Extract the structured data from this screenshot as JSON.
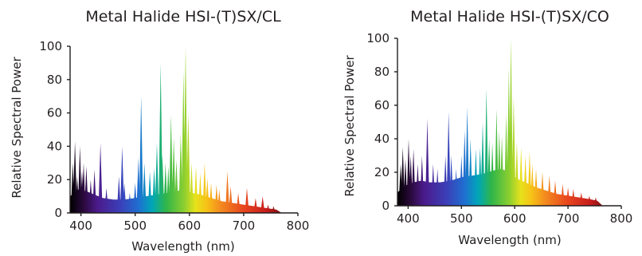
{
  "chart_data": [
    {
      "type": "area",
      "title": "Metal Halide HSI-(T)SX/CL",
      "xlabel": "Wavelength (nm)",
      "ylabel": "Relative Spectral Power",
      "xlim": [
        380,
        800
      ],
      "ylim": [
        0,
        100
      ],
      "xticks": [
        400,
        500,
        600,
        700,
        800
      ],
      "yticks": [
        0,
        20,
        40,
        60,
        80,
        100
      ],
      "grid": false,
      "baseline": [
        [
          380,
          10
        ],
        [
          395,
          14
        ],
        [
          410,
          13
        ],
        [
          425,
          11
        ],
        [
          440,
          9
        ],
        [
          460,
          8
        ],
        [
          480,
          8
        ],
        [
          500,
          9
        ],
        [
          520,
          10
        ],
        [
          540,
          11
        ],
        [
          560,
          12
        ],
        [
          575,
          13
        ],
        [
          590,
          14
        ],
        [
          605,
          12
        ],
        [
          620,
          11
        ],
        [
          640,
          9
        ],
        [
          660,
          7
        ],
        [
          680,
          6
        ],
        [
          700,
          5
        ],
        [
          720,
          4
        ],
        [
          740,
          3
        ],
        [
          760,
          2
        ],
        [
          770,
          0
        ]
      ],
      "peaks": [
        [
          385,
          30
        ],
        [
          389,
          43
        ],
        [
          393,
          22
        ],
        [
          398,
          40
        ],
        [
          402,
          25
        ],
        [
          405,
          30
        ],
        [
          410,
          28
        ],
        [
          418,
          20
        ],
        [
          425,
          26
        ],
        [
          436,
          42
        ],
        [
          447,
          15
        ],
        [
          470,
          22
        ],
        [
          476,
          40
        ],
        [
          480,
          18
        ],
        [
          490,
          12
        ],
        [
          500,
          18
        ],
        [
          506,
          33
        ],
        [
          511,
          70
        ],
        [
          517,
          30
        ],
        [
          527,
          25
        ],
        [
          535,
          27
        ],
        [
          540,
          42
        ],
        [
          547,
          90
        ],
        [
          550,
          35
        ],
        [
          556,
          30
        ],
        [
          561,
          28
        ],
        [
          566,
          59
        ],
        [
          571,
          45
        ],
        [
          576,
          32
        ],
        [
          584,
          48
        ],
        [
          589,
          85
        ],
        [
          593,
          100
        ],
        [
          598,
          60
        ],
        [
          604,
          30
        ],
        [
          612,
          28
        ],
        [
          620,
          24
        ],
        [
          628,
          30
        ],
        [
          633,
          21
        ],
        [
          640,
          18
        ],
        [
          650,
          17
        ],
        [
          655,
          14
        ],
        [
          670,
          25
        ],
        [
          676,
          16
        ],
        [
          690,
          12
        ],
        [
          706,
          15
        ],
        [
          722,
          9
        ],
        [
          735,
          10
        ],
        [
          745,
          5
        ],
        [
          755,
          4
        ]
      ]
    },
    {
      "type": "area",
      "title": "Metal Halide HSI-(T)SX/CO",
      "xlabel": "Wavelength (nm)",
      "ylabel": "Relative Spectral Power",
      "xlim": [
        380,
        800
      ],
      "ylim": [
        0,
        100
      ],
      "xticks": [
        400,
        500,
        600,
        700,
        800
      ],
      "yticks": [
        0,
        20,
        40,
        60,
        80,
        100
      ],
      "grid": false,
      "baseline": [
        [
          380,
          8
        ],
        [
          395,
          12
        ],
        [
          410,
          14
        ],
        [
          425,
          15
        ],
        [
          440,
          14
        ],
        [
          460,
          14
        ],
        [
          480,
          15
        ],
        [
          500,
          17
        ],
        [
          520,
          18
        ],
        [
          540,
          19
        ],
        [
          560,
          21
        ],
        [
          575,
          22
        ],
        [
          590,
          20
        ],
        [
          605,
          16
        ],
        [
          620,
          14
        ],
        [
          640,
          11
        ],
        [
          660,
          9
        ],
        [
          680,
          7
        ],
        [
          700,
          6
        ],
        [
          720,
          5
        ],
        [
          740,
          4
        ],
        [
          755,
          3
        ],
        [
          765,
          0
        ]
      ],
      "peaks": [
        [
          386,
          25
        ],
        [
          390,
          35
        ],
        [
          395,
          28
        ],
        [
          401,
          40
        ],
        [
          405,
          30
        ],
        [
          410,
          34
        ],
        [
          418,
          25
        ],
        [
          426,
          30
        ],
        [
          436,
          52
        ],
        [
          447,
          25
        ],
        [
          455,
          22
        ],
        [
          470,
          30
        ],
        [
          476,
          56
        ],
        [
          481,
          30
        ],
        [
          490,
          22
        ],
        [
          500,
          30
        ],
        [
          506,
          45
        ],
        [
          511,
          59
        ],
        [
          517,
          40
        ],
        [
          527,
          34
        ],
        [
          535,
          35
        ],
        [
          540,
          50
        ],
        [
          547,
          70
        ],
        [
          552,
          40
        ],
        [
          558,
          38
        ],
        [
          566,
          58
        ],
        [
          571,
          45
        ],
        [
          576,
          42
        ],
        [
          584,
          55
        ],
        [
          589,
          82
        ],
        [
          593,
          100
        ],
        [
          598,
          65
        ],
        [
          604,
          38
        ],
        [
          612,
          35
        ],
        [
          620,
          30
        ],
        [
          628,
          32
        ],
        [
          633,
          25
        ],
        [
          640,
          22
        ],
        [
          652,
          20
        ],
        [
          665,
          18
        ],
        [
          676,
          15
        ],
        [
          690,
          13
        ],
        [
          700,
          11
        ],
        [
          710,
          10
        ],
        [
          725,
          8
        ],
        [
          740,
          6
        ],
        [
          752,
          5
        ]
      ]
    }
  ]
}
